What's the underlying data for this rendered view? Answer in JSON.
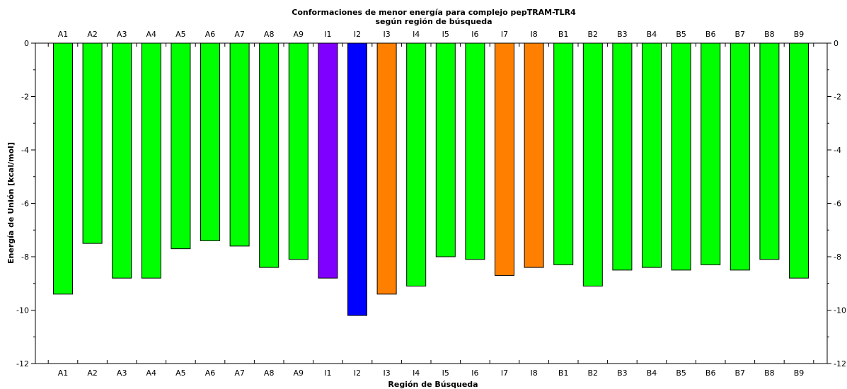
{
  "chart_data": {
    "type": "bar",
    "title": "Conformaciones de menor energía para complejo pepTRAM-TLR4",
    "subtitle": "según región de búsqueda",
    "xlabel": "Región de Búsqueda",
    "ylabel": "Energía de Unión [kcal/mol]",
    "ylim": [
      -12,
      0
    ],
    "yticks": [
      0,
      -2,
      -4,
      -6,
      -8,
      -10,
      -12
    ],
    "ytick_labels": [
      "0",
      "-2",
      "-4",
      "-6",
      "-8",
      "-10",
      "-12"
    ],
    "grid": false,
    "categories": [
      "A1",
      "A2",
      "A3",
      "A4",
      "A5",
      "A6",
      "A7",
      "A8",
      "A9",
      "I1",
      "I2",
      "I3",
      "I4",
      "I5",
      "I6",
      "I7",
      "I8",
      "B1",
      "B2",
      "B3",
      "B4",
      "B5",
      "B6",
      "B7",
      "B8",
      "B9"
    ],
    "values": [
      -9.4,
      -7.5,
      -8.8,
      -8.8,
      -7.7,
      -7.4,
      -7.6,
      -8.4,
      -8.1,
      -8.8,
      -10.2,
      -9.4,
      -9.1,
      -8.0,
      -8.1,
      -8.7,
      -8.4,
      -8.3,
      -9.1,
      -8.5,
      -8.4,
      -8.5,
      -8.3,
      -8.5,
      -8.1,
      -8.8
    ],
    "colors": [
      "#00ff00",
      "#00ff00",
      "#00ff00",
      "#00ff00",
      "#00ff00",
      "#00ff00",
      "#00ff00",
      "#00ff00",
      "#00ff00",
      "#8000ff",
      "#0000ff",
      "#ff8000",
      "#00ff00",
      "#00ff00",
      "#00ff00",
      "#ff8000",
      "#ff8000",
      "#00ff00",
      "#00ff00",
      "#00ff00",
      "#00ff00",
      "#00ff00",
      "#00ff00",
      "#00ff00",
      "#00ff00",
      "#00ff00"
    ]
  }
}
